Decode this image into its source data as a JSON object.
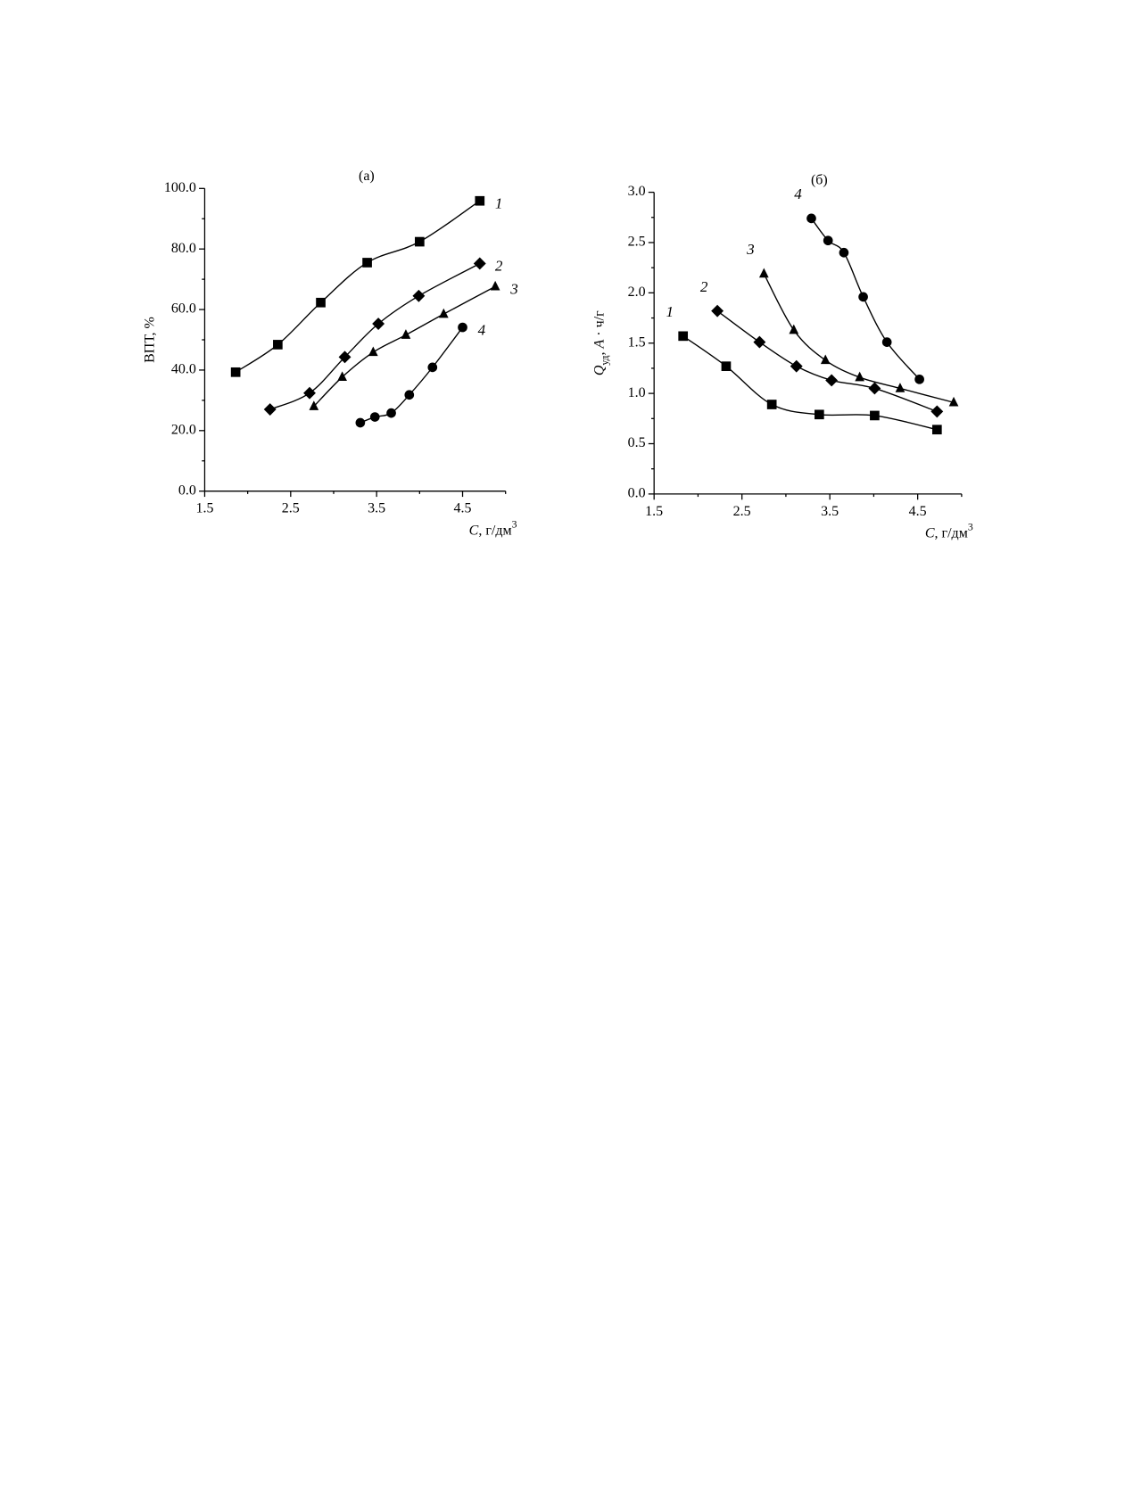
{
  "chart_data": [
    {
      "type": "scatter",
      "title": "(а)",
      "x_label": [
        {
          "text": "C",
          "style": "italic"
        },
        {
          "text": ", г/дм"
        },
        {
          "text": "3",
          "style": "sup"
        }
      ],
      "y_label": [
        {
          "text": "ВПТ, %"
        }
      ],
      "xlim": [
        1.5,
        5.0
      ],
      "ylim": [
        0,
        100
      ],
      "xticks": [
        1.5,
        2.5,
        3.5,
        4.5
      ],
      "xminorticks": [
        2.0,
        3.0,
        4.0,
        5.0
      ],
      "yticks": [
        {
          "value": 0,
          "label": "0.0"
        },
        {
          "value": 20,
          "label": "20.0"
        },
        {
          "value": 40,
          "label": "40.0"
        },
        {
          "value": 60,
          "label": "60.0"
        },
        {
          "value": 80,
          "label": "80.0"
        },
        {
          "value": 100,
          "label": "100.0"
        }
      ],
      "yminorticks": [
        10,
        30,
        50,
        70,
        90
      ],
      "series_label_at": "end",
      "series": [
        {
          "name": "1",
          "marker": "square",
          "color": "#000000",
          "x": [
            1.86,
            2.35,
            2.85,
            3.39,
            4.0,
            4.7
          ],
          "values": [
            39.3,
            48.4,
            62.3,
            75.5,
            82.4,
            95.9
          ]
        },
        {
          "name": "2",
          "marker": "diamond",
          "color": "#000000",
          "x": [
            2.26,
            2.72,
            3.13,
            3.52,
            3.99,
            4.7
          ],
          "values": [
            27.0,
            32.4,
            44.3,
            55.3,
            64.5,
            75.2
          ]
        },
        {
          "name": "3",
          "marker": "triangle",
          "color": "#000000",
          "x": [
            2.77,
            3.1,
            3.46,
            3.84,
            4.28,
            4.88
          ],
          "values": [
            28.0,
            37.7,
            45.9,
            51.6,
            58.5,
            67.6
          ]
        },
        {
          "name": "4",
          "marker": "circle",
          "color": "#000000",
          "x": [
            3.31,
            3.48,
            3.67,
            3.88,
            4.15,
            4.5
          ],
          "values": [
            22.6,
            24.5,
            25.8,
            31.8,
            40.9,
            54.1
          ]
        }
      ]
    },
    {
      "type": "scatter",
      "title": "(б)",
      "x_label": [
        {
          "text": "C",
          "style": "italic"
        },
        {
          "text": ", г/дм"
        },
        {
          "text": "3",
          "style": "sup"
        }
      ],
      "y_label": [
        {
          "text": "Q",
          "style": "italic"
        },
        {
          "text": "уд",
          "style": "sub"
        },
        {
          "text": ", "
        },
        {
          "text": "A",
          "style": "italic"
        },
        {
          "text": " · ч/г"
        }
      ],
      "xlim": [
        1.5,
        5.0
      ],
      "ylim": [
        0,
        3.0
      ],
      "xticks": [
        1.5,
        2.5,
        3.5,
        4.5
      ],
      "xminorticks": [
        2.0,
        3.0,
        4.0,
        5.0
      ],
      "yticks": [
        {
          "value": 0,
          "label": "0.0"
        },
        0.5,
        {
          "value": 1,
          "label": "1.0"
        },
        1.5,
        {
          "value": 2,
          "label": "2.0"
        },
        2.5,
        {
          "value": 3,
          "label": "3.0"
        }
      ],
      "yminorticks": [
        0.25,
        0.75,
        1.25,
        1.75,
        2.25,
        2.75
      ],
      "series_label_at": "start",
      "series": [
        {
          "name": "1",
          "marker": "square",
          "color": "#000000",
          "x": [
            1.83,
            2.32,
            2.84,
            3.38,
            4.01,
            4.72
          ],
          "values": [
            1.57,
            1.27,
            0.89,
            0.79,
            0.78,
            0.64
          ]
        },
        {
          "name": "2",
          "marker": "diamond",
          "color": "#000000",
          "x": [
            2.22,
            2.7,
            3.12,
            3.52,
            4.01,
            4.72
          ],
          "values": [
            1.82,
            1.51,
            1.27,
            1.13,
            1.05,
            0.82
          ]
        },
        {
          "name": "3",
          "marker": "triangle",
          "color": "#000000",
          "x": [
            2.75,
            3.09,
            3.45,
            3.84,
            4.3,
            4.91
          ],
          "values": [
            2.19,
            1.63,
            1.33,
            1.16,
            1.05,
            0.91
          ]
        },
        {
          "name": "4",
          "marker": "circle",
          "color": "#000000",
          "x": [
            3.29,
            3.48,
            3.66,
            3.88,
            4.15,
            4.52
          ],
          "values": [
            2.74,
            2.52,
            2.4,
            1.96,
            1.51,
            1.14
          ]
        }
      ]
    }
  ]
}
